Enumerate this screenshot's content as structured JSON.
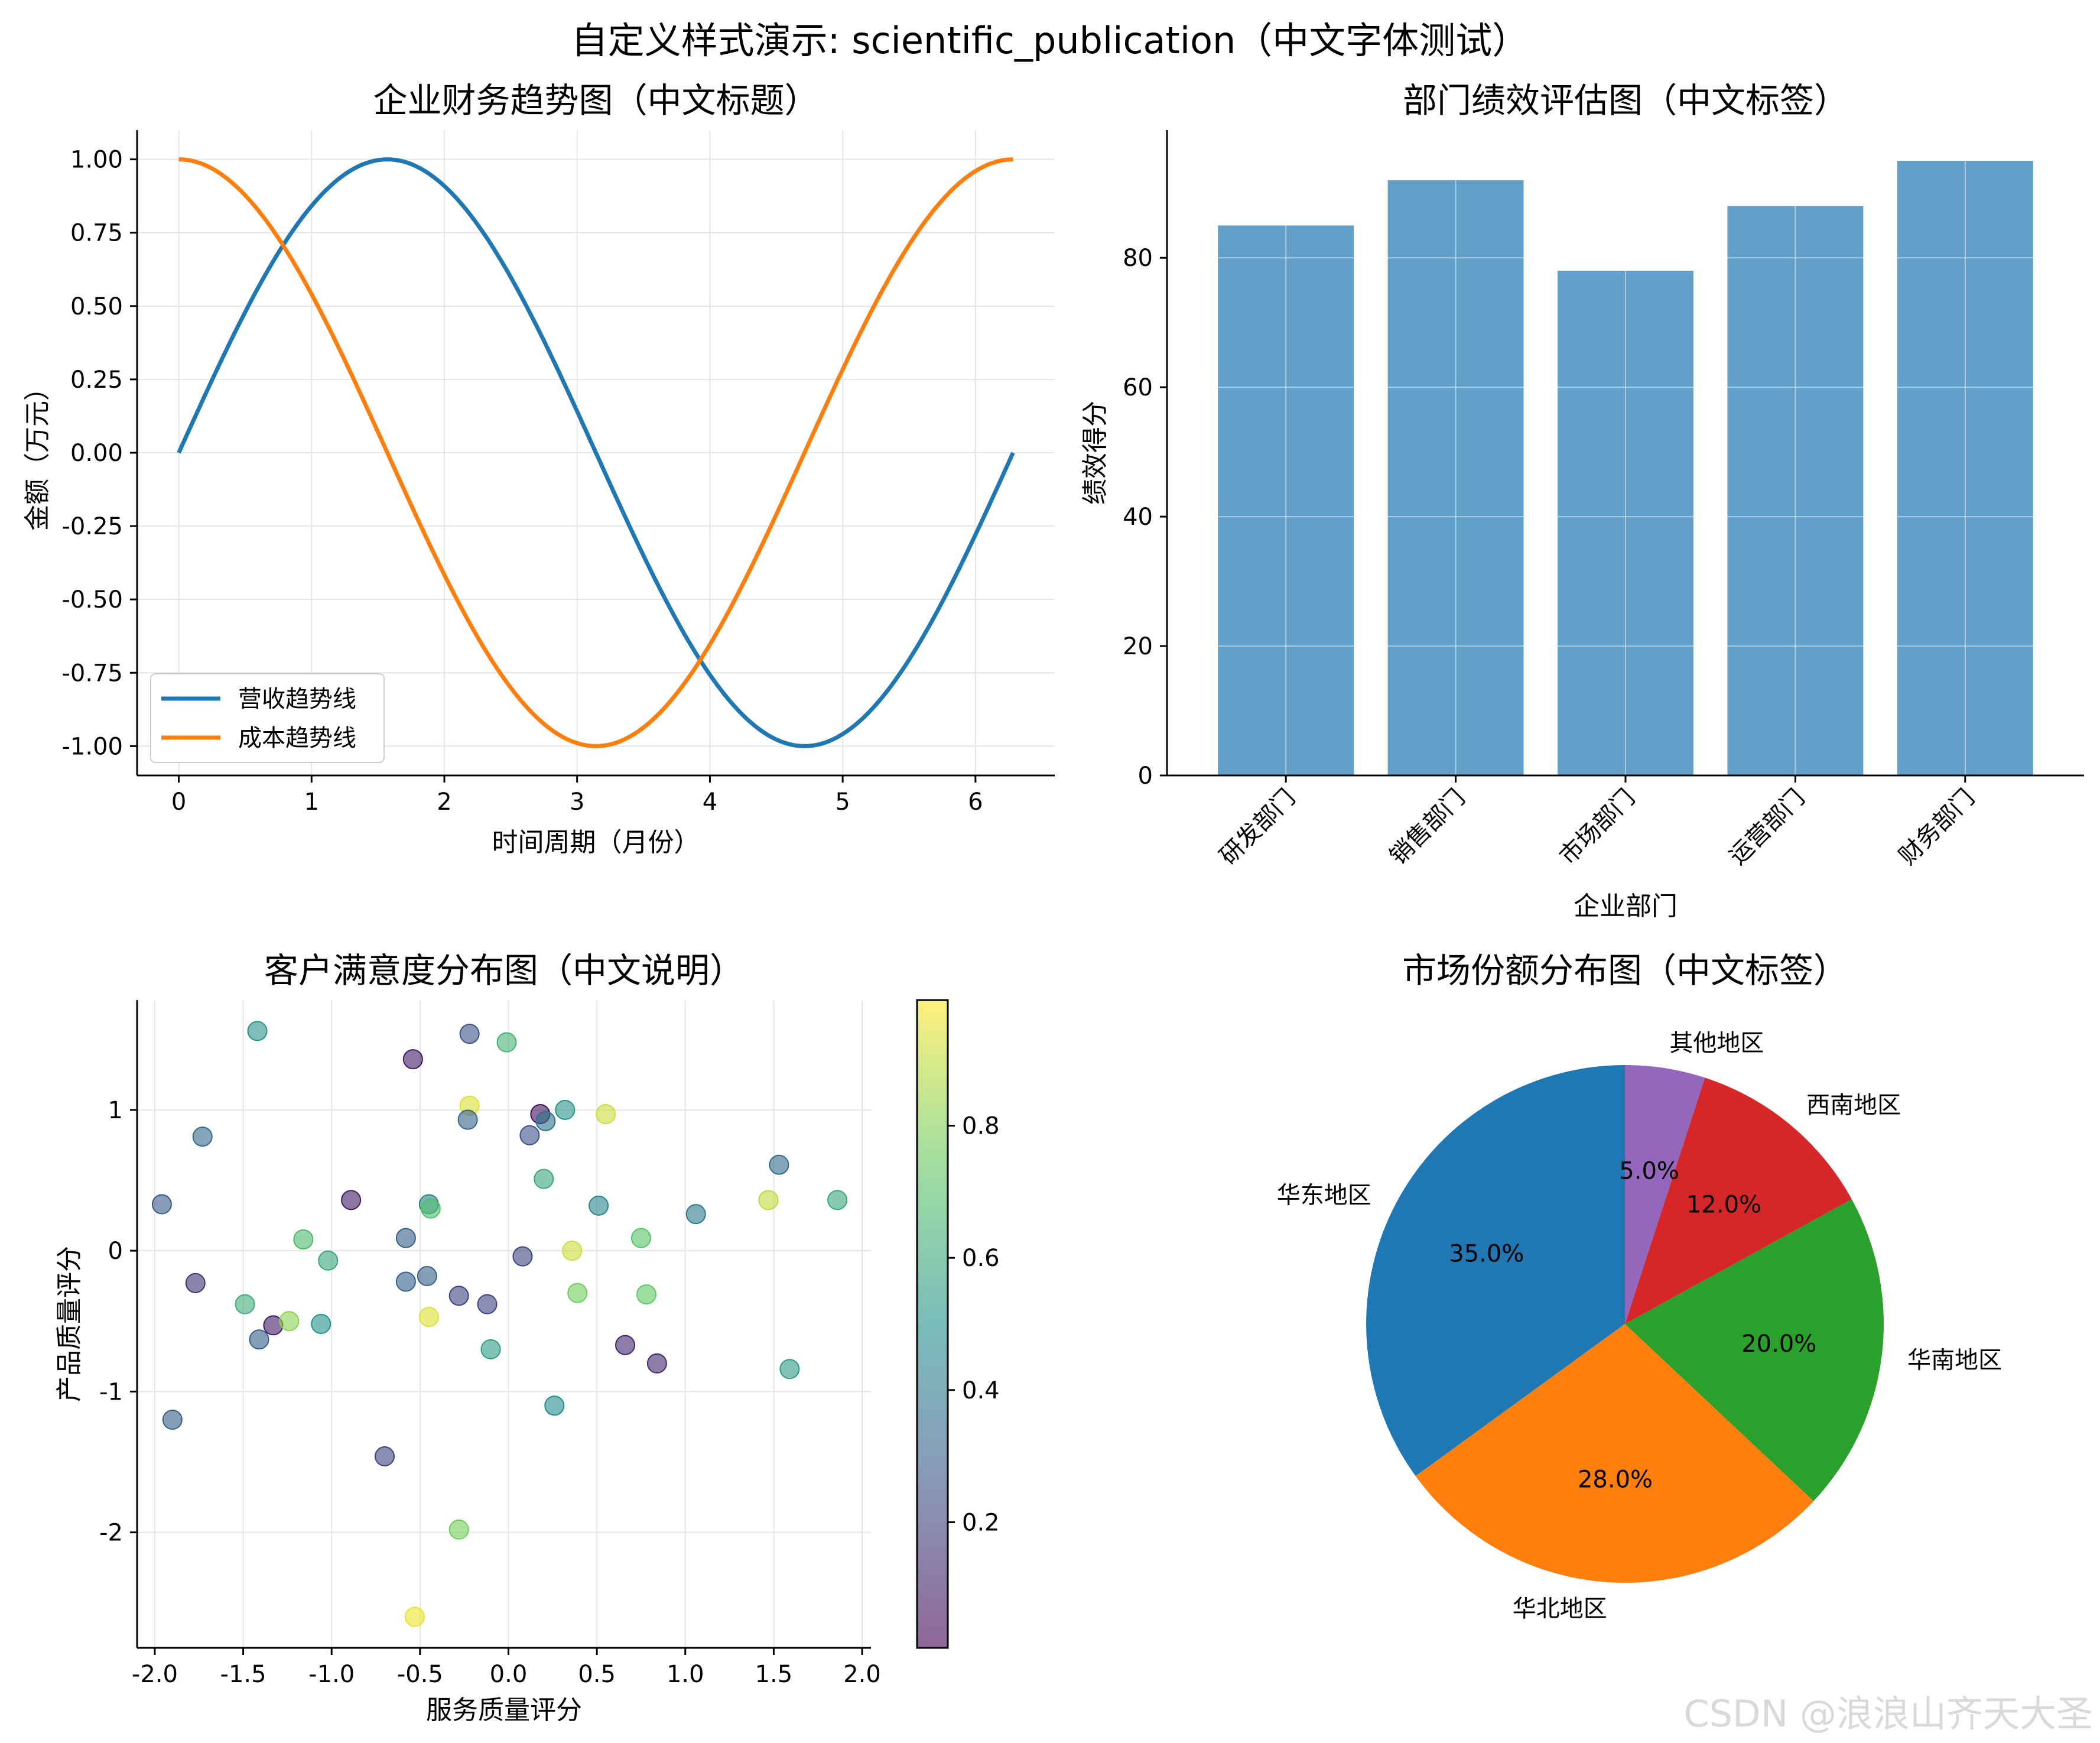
{
  "figure": {
    "suptitle": "自定义样式演示: scientific_publication（中文字体测试）",
    "watermark": "CSDN @浪浪山齐天大圣"
  },
  "colors": {
    "blue": "#1f77b4",
    "orange": "#ff7f0e",
    "green": "#2ca02c",
    "red": "#d62728",
    "purple": "#9467bd",
    "bar": "#1f77b4",
    "axis": "#000000",
    "grid": "#e6e6e6"
  },
  "chart_data": [
    {
      "type": "line",
      "title": "企业财务趋势图（中文标题）",
      "xlabel": "时间周期（月份）",
      "ylabel": "金额（万元）",
      "xlim": [
        -0.314,
        6.597
      ],
      "ylim": [
        -1.1,
        1.1
      ],
      "xticks": [
        0,
        1,
        2,
        3,
        4,
        5,
        6
      ],
      "xticklabels": [
        "0",
        "1",
        "2",
        "3",
        "4",
        "5",
        "6"
      ],
      "yticks": [
        -1.0,
        -0.75,
        -0.5,
        -0.25,
        0.0,
        0.25,
        0.5,
        0.75,
        1.0
      ],
      "yticklabels": [
        "-1.00",
        "-0.75",
        "-0.50",
        "-0.25",
        "0.00",
        "0.25",
        "0.50",
        "0.75",
        "1.00"
      ],
      "grid": true,
      "legend_loc": "lower-left",
      "x_range": [
        0,
        6.283
      ],
      "series": [
        {
          "name": "营收趋势线",
          "function": "sin",
          "color": "#1f77b4"
        },
        {
          "name": "成本趋势线",
          "function": "cos",
          "color": "#ff7f0e"
        }
      ]
    },
    {
      "type": "bar",
      "title": "部门绩效评估图（中文标签）",
      "xlabel": "企业部门",
      "ylabel": "绩效得分",
      "categories": [
        "研发部门",
        "销售部门",
        "市场部门",
        "运营部门",
        "财务部门"
      ],
      "values": [
        85,
        92,
        78,
        88,
        95
      ],
      "ylim": [
        0,
        99.75
      ],
      "yticks": [
        0,
        20,
        40,
        60,
        80
      ],
      "yticklabels": [
        "0",
        "20",
        "40",
        "60",
        "80"
      ],
      "grid": true,
      "color": "#1f77b4",
      "alpha": 0.7
    },
    {
      "type": "scatter",
      "title": "客户满意度分布图（中文说明）",
      "xlabel": "服务质量评分",
      "ylabel": "产品质量评分",
      "xlim": [
        -2.1,
        2.05
      ],
      "ylim": [
        -2.82,
        1.78
      ],
      "xticks": [
        -2.0,
        -1.5,
        -1.0,
        -0.5,
        0.0,
        0.5,
        1.0,
        1.5,
        2.0
      ],
      "xticklabels": [
        "-2.0",
        "-1.5",
        "-1.0",
        "-0.5",
        "0.0",
        "0.5",
        "1.0",
        "1.5",
        "2.0"
      ],
      "yticks": [
        1,
        0,
        -1,
        -2
      ],
      "yticklabels": [
        "1",
        "0",
        "-1",
        "-2"
      ],
      "grid": true,
      "colormap": "viridis",
      "colorbar_ticks": [
        0.2,
        0.4,
        0.6,
        0.8
      ],
      "colorbar_ticklabels": [
        "0.2",
        "0.4",
        "0.6",
        "0.8"
      ],
      "colorbar_range": [
        0.01,
        0.99
      ],
      "points": [
        {
          "x": -1.42,
          "y": 1.56,
          "c": 0.52
        },
        {
          "x": -0.22,
          "y": 1.54,
          "c": 0.25
        },
        {
          "x": -0.01,
          "y": 1.48,
          "c": 0.65
        },
        {
          "x": -0.54,
          "y": 1.36,
          "c": 0.08
        },
        {
          "x": -1.73,
          "y": 0.81,
          "c": 0.35
        },
        {
          "x": -0.22,
          "y": 1.03,
          "c": 0.95
        },
        {
          "x": -0.23,
          "y": 0.93,
          "c": 0.32
        },
        {
          "x": 0.18,
          "y": 0.97,
          "c": 0.05
        },
        {
          "x": 0.21,
          "y": 0.92,
          "c": 0.38
        },
        {
          "x": 0.12,
          "y": 0.82,
          "c": 0.25
        },
        {
          "x": 0.32,
          "y": 1.0,
          "c": 0.52
        },
        {
          "x": 0.55,
          "y": 0.97,
          "c": 0.92
        },
        {
          "x": 1.53,
          "y": 0.61,
          "c": 0.35
        },
        {
          "x": 0.2,
          "y": 0.51,
          "c": 0.6
        },
        {
          "x": -1.96,
          "y": 0.33,
          "c": 0.28
        },
        {
          "x": -0.89,
          "y": 0.36,
          "c": 0.08
        },
        {
          "x": -0.45,
          "y": 0.33,
          "c": 0.45
        },
        {
          "x": -0.44,
          "y": 0.3,
          "c": 0.7
        },
        {
          "x": 0.51,
          "y": 0.32,
          "c": 0.45
        },
        {
          "x": 1.06,
          "y": 0.26,
          "c": 0.4
        },
        {
          "x": 1.47,
          "y": 0.36,
          "c": 0.9
        },
        {
          "x": 1.86,
          "y": 0.36,
          "c": 0.6
        },
        {
          "x": -1.16,
          "y": 0.08,
          "c": 0.68
        },
        {
          "x": -0.58,
          "y": 0.09,
          "c": 0.3
        },
        {
          "x": 0.75,
          "y": 0.09,
          "c": 0.72
        },
        {
          "x": -1.02,
          "y": -0.07,
          "c": 0.6
        },
        {
          "x": 0.08,
          "y": -0.04,
          "c": 0.2
        },
        {
          "x": 0.36,
          "y": 0.0,
          "c": 0.92
        },
        {
          "x": -1.77,
          "y": -0.23,
          "c": 0.15
        },
        {
          "x": -0.58,
          "y": -0.22,
          "c": 0.3
        },
        {
          "x": -0.46,
          "y": -0.18,
          "c": 0.3
        },
        {
          "x": -0.28,
          "y": -0.32,
          "c": 0.2
        },
        {
          "x": -0.12,
          "y": -0.38,
          "c": 0.2
        },
        {
          "x": 0.39,
          "y": -0.3,
          "c": 0.78
        },
        {
          "x": 0.78,
          "y": -0.31,
          "c": 0.75
        },
        {
          "x": -1.49,
          "y": -0.38,
          "c": 0.62
        },
        {
          "x": -1.41,
          "y": -0.63,
          "c": 0.3
        },
        {
          "x": -1.33,
          "y": -0.53,
          "c": 0.08
        },
        {
          "x": -1.24,
          "y": -0.5,
          "c": 0.82
        },
        {
          "x": -1.06,
          "y": -0.52,
          "c": 0.5
        },
        {
          "x": -0.45,
          "y": -0.47,
          "c": 0.95
        },
        {
          "x": -0.1,
          "y": -0.7,
          "c": 0.55
        },
        {
          "x": 0.66,
          "y": -0.67,
          "c": 0.12
        },
        {
          "x": 0.84,
          "y": -0.8,
          "c": 0.12
        },
        {
          "x": 1.59,
          "y": -0.84,
          "c": 0.55
        },
        {
          "x": -1.9,
          "y": -1.2,
          "c": 0.3
        },
        {
          "x": 0.26,
          "y": -1.1,
          "c": 0.48
        },
        {
          "x": -0.7,
          "y": -1.46,
          "c": 0.2
        },
        {
          "x": -0.28,
          "y": -1.98,
          "c": 0.78
        },
        {
          "x": -0.53,
          "y": -2.6,
          "c": 0.97
        }
      ]
    },
    {
      "type": "pie",
      "title": "市场份额分布图（中文标签）",
      "startangle": 90,
      "counterclock": true,
      "slices": [
        {
          "label": "华东地区",
          "value": 35,
          "pct": "35.0%",
          "color": "#1f77b4"
        },
        {
          "label": "华北地区",
          "value": 28,
          "pct": "28.0%",
          "color": "#ff7f0e"
        },
        {
          "label": "华南地区",
          "value": 20,
          "pct": "20.0%",
          "color": "#2ca02c"
        },
        {
          "label": "西南地区",
          "value": 12,
          "pct": "12.0%",
          "color": "#d62728"
        },
        {
          "label": "其他地区",
          "value": 5,
          "pct": "5.0%",
          "color": "#9467bd"
        }
      ]
    }
  ]
}
